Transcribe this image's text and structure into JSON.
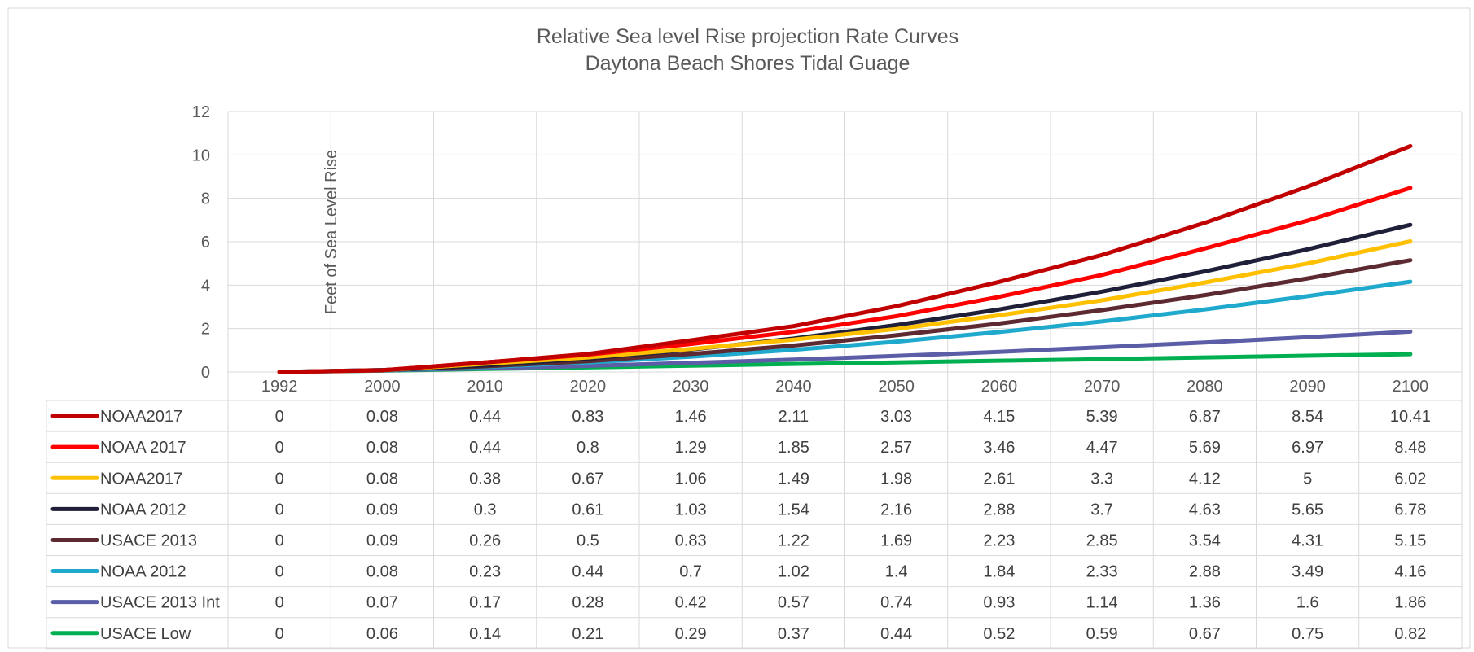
{
  "chart_data": {
    "type": "line",
    "title": "Relative Sea level Rise projection Rate Curves",
    "subtitle": "Daytona Beach Shores Tidal Guage",
    "ylabel": "Feet of Sea Level Rise",
    "ylim": [
      0,
      12
    ],
    "yticks": [
      "0",
      "2",
      "4",
      "6",
      "8",
      "10",
      "12"
    ],
    "categories": [
      "1992",
      "2000",
      "2010",
      "2020",
      "2030",
      "2040",
      "2050",
      "2060",
      "2070",
      "2080",
      "2090",
      "2100"
    ],
    "grid": true,
    "legend": "data-table",
    "series": [
      {
        "name": "NOAA2017",
        "color": "#C00000",
        "values": [
          0,
          0.08,
          0.44,
          0.83,
          1.46,
          2.11,
          3.03,
          4.15,
          5.39,
          6.87,
          8.54,
          10.41
        ]
      },
      {
        "name": "NOAA 2017",
        "color": "#FF0000",
        "values": [
          0,
          0.08,
          0.44,
          0.8,
          1.29,
          1.85,
          2.57,
          3.46,
          4.47,
          5.69,
          6.97,
          8.48
        ]
      },
      {
        "name": "NOAA2017",
        "color": "#FFC000",
        "values": [
          0,
          0.08,
          0.38,
          0.67,
          1.06,
          1.49,
          1.98,
          2.61,
          3.3,
          4.12,
          5,
          6.02
        ]
      },
      {
        "name": "NOAA 2012",
        "color": "#1F1F3A",
        "values": [
          0,
          0.09,
          0.3,
          0.61,
          1.03,
          1.54,
          2.16,
          2.88,
          3.7,
          4.63,
          5.65,
          6.78
        ]
      },
      {
        "name": "USACE 2013",
        "color": "#5C2A30",
        "values": [
          0,
          0.09,
          0.26,
          0.5,
          0.83,
          1.22,
          1.69,
          2.23,
          2.85,
          3.54,
          4.31,
          5.15
        ]
      },
      {
        "name": "NOAA 2012",
        "color": "#1FA9CD",
        "values": [
          0,
          0.08,
          0.23,
          0.44,
          0.7,
          1.02,
          1.4,
          1.84,
          2.33,
          2.88,
          3.49,
          4.16
        ]
      },
      {
        "name": "USACE 2013 Int",
        "color": "#5B5EA6",
        "values": [
          0,
          0.07,
          0.17,
          0.28,
          0.42,
          0.57,
          0.74,
          0.93,
          1.14,
          1.36,
          1.6,
          1.86
        ]
      },
      {
        "name": "USACE Low",
        "color": "#00B050",
        "values": [
          0,
          0.06,
          0.14,
          0.21,
          0.29,
          0.37,
          0.44,
          0.52,
          0.59,
          0.67,
          0.75,
          0.82
        ]
      }
    ],
    "table_cells": [
      [
        "0",
        "0.08",
        "0.44",
        "0.83",
        "1.46",
        "2.11",
        "3.03",
        "4.15",
        "5.39",
        "6.87",
        "8.54",
        "10.41"
      ],
      [
        "0",
        "0.08",
        "0.44",
        "0.8",
        "1.29",
        "1.85",
        "2.57",
        "3.46",
        "4.47",
        "5.69",
        "6.97",
        "8.48"
      ],
      [
        "0",
        "0.08",
        "0.38",
        "0.67",
        "1.06",
        "1.49",
        "1.98",
        "2.61",
        "3.3",
        "4.12",
        "5",
        "6.02"
      ],
      [
        "0",
        "0.09",
        "0.3",
        "0.61",
        "1.03",
        "1.54",
        "2.16",
        "2.88",
        "3.7",
        "4.63",
        "5.65",
        "6.78"
      ],
      [
        "0",
        "0.09",
        "0.26",
        "0.5",
        "0.83",
        "1.22",
        "1.69",
        "2.23",
        "2.85",
        "3.54",
        "4.31",
        "5.15"
      ],
      [
        "0",
        "0.08",
        "0.23",
        "0.44",
        "0.7",
        "1.02",
        "1.4",
        "1.84",
        "2.33",
        "2.88",
        "3.49",
        "4.16"
      ],
      [
        "0",
        "0.07",
        "0.17",
        "0.28",
        "0.42",
        "0.57",
        "0.74",
        "0.93",
        "1.14",
        "1.36",
        "1.6",
        "1.86"
      ],
      [
        "0",
        "0.06",
        "0.14",
        "0.21",
        "0.29",
        "0.37",
        "0.44",
        "0.52",
        "0.59",
        "0.67",
        "0.75",
        "0.82"
      ]
    ]
  }
}
